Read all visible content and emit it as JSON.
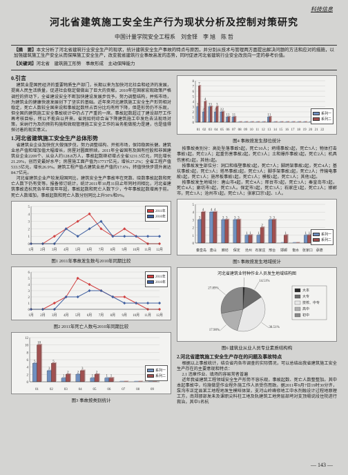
{
  "header_label": "科技信息",
  "title": "河北省建筑施工安全生产行为现状分析及控制对策研究",
  "authors": "中国计量学院安全工程系　刘金铎　李 旭　陈 哲",
  "abstract_label": "【摘　要】",
  "abstract": "本文分析了河北省建筑行业安全生产的现状，统计建筑安全生产事故的特点与原因，并分别从技术与管理两方面提出解决问题的方法和应对的措施，以加强建筑施工生产安全从而保障施工安全生产，改变我省建筑行业事故高发的态势，同时促进河北省建筑行业安全改良向一定的参考价值。",
  "keywords_label": "【关键词】",
  "keywords": "河北省　建筑施工形势　事故形成　主动保障能力",
  "sec0_head": "0.引言",
  "sec0_p1": "建筑业是国民经济的重要物质生产部门，长期以来为加快河北社会和经济的发展，提高人民生活质量，促进社会稳定做做出了巨大的贡献。2010年在国家宏观政策严格调控的挤动下，全省建设安全不断加快建设发展步伐予。努力调整结构，并拓市场，为建筑业的健康快速发展创下了坚实的基础。近年来河北建筑施工安全生产形势相对稳定，死亡人数较全国来说和事故起数所占百分比均有所下降，但是形势仍不乐观，但全国的建筑施工安全事故统计中仍占了严重的一席。事故起数超过了建设部厅工作再考核目标，所以不能自以开来。省则如何综合当下降建筑施工中发危去法现场对策，采纳行为及的预防构施和微观管理施工安全工作的当务能做能力是建，也是值得探讨着的现实意义。",
  "sec1_head": "1.河北省建筑施工安全生产总体形势",
  "sec1_p1": "省建筑业企业加快优大做强步伐，努力调整结构、开拓市场，保持稳固长健。建筑业总产值和增加值大幅增长，房屋对圆面积续。2011年全省国有及国有控股和非国建筑业企业2209个、从业人约128.8万人，事故起数继初增占全省3231.5亿元，同比增长21.29%，创历史最好水平；房屋施工面产值为17717亿元，增长27.2%；全省工程产值533.5亿元，增长26.9%。建筑工程产值占建筑业总产值的17.6%，转值快快步提升高达84.7亿元。",
  "sec1_p2": "河北省建筑企业产较发规国同比，建筑安全生产事故率在死数、晓数事故起数和死亡人数下仍有变等。报备修订统计，统计2011年10月31日止年同时间相比，河北省建筑事故造杭死各半年度年年超，事故起数和死亡人数下少，今年事故起数增高于前。死亡人数增加，事故起数和死亡人数分别同比上升50%和9%。",
  "chart1_caption": "图1 2011年事故发生数与2010年同期比较",
  "chart2_caption": "图2 2011年死亡人数与2010年同期比较",
  "chart3_caption": "图3 事故按类别统计",
  "chart4_caption": "图4 事故按发生部位统计",
  "chart5_caption": "图5 事故按发生地域统计",
  "chart6_caption": "图6 建筑业从业人员专业素质结构构",
  "chart5_title": "河北省建筑业特种作业人员发生地域结构图",
  "right_p1": "按事故类别分：高处坠落事故5起，死亡10人；坍塌事故3起，死亡5人；物体打击事故1起，死亡2人；起重伤害事故2起，死亡3人；土和爆炸事故1起，死亡2人；机具伤害机1起，其他1起。",
  "right_p2": "按事故发生部位分：洞口和临壁事故3起，死亡7人；脚跨架事故2起，死亡4人；基坑事故3起，死亡3人；塔吊事故2起，死亡3人；脚手架事故2起，死亡2人；传输电事故1起，死亡1人；施吊板事故1起，死亡1人；模板1起，死亡1人；其他1起。",
  "right_p3": "按事故发生地域分：唐山市4起，死亡4人；邢台市3起，死亡3人；秦皇岛市3起，死亡4人；廊坊市3起，死亡3人。保定市3起，死亡3人；石家庄1起，死亡2人；邯郸市，死亡1人；沧州市1起，死亡1人；张家口宗1起、1人。",
  "sec2_head": "2.河北省建筑施工安全生产存在的问题及事故特点",
  "right_p4": "根据以上事故统计，结合省内各市调查的实际情况，可以总结出我省建筑施工安全生产存在的主要意现和特点：",
  "right_p5": "2.1 违章作业、填场的容易常者普遍",
  "right_p6": "近年我省建筑工程领域安全生产形势不容乐观，事故起数、死亡人数整整加。其中本起事故中，均施做是作业程外施工作人员受伤而致。据2011年9月7日19时30分许，泵沟市正定县某工地程地发生模旺体架，支河山岭峰修地工中水剂融设计过程地原理工方，南郑那部发未及课职尖料柱工地及轨建筑工地旁层部垮对支顶塌说段住院进行救治，其中1名杭",
  "page_num": "— 143 —",
  "chart1": {
    "type": "line",
    "xlabels": [
      "1月",
      "2月",
      "3月",
      "4月",
      "5月",
      "6月",
      "7月",
      "8月",
      "9月",
      "10月",
      "11月",
      "12月"
    ],
    "ylim": [
      0,
      5
    ],
    "ytick": 1,
    "series": [
      {
        "label": "2011年",
        "color": "#d04040",
        "marker": "diamond",
        "values": [
          0,
          0,
          1,
          2,
          3,
          4,
          2,
          1,
          2,
          1,
          0,
          0
        ]
      },
      {
        "label": "2010年",
        "color": "#4060a0",
        "marker": "square",
        "values": [
          0,
          0,
          0,
          2,
          1,
          2,
          3,
          1,
          1,
          1,
          1,
          1
        ]
      }
    ],
    "bg": "#f3f3f1",
    "grid": "#bbb"
  },
  "chart2": {
    "type": "line",
    "xlabels": [
      "1月",
      "2月",
      "3月",
      "4月",
      "5月",
      "6月",
      "7月",
      "8月",
      "9月",
      "10月",
      "11月",
      "12月"
    ],
    "ylim": [
      0,
      6
    ],
    "ytick": 1,
    "series": [
      {
        "label": "2011年",
        "color": "#d04040",
        "marker": "diamond",
        "values": [
          0,
          0,
          1,
          2,
          5,
          4,
          3,
          2,
          2,
          1,
          0,
          0
        ]
      },
      {
        "label": "2010年",
        "color": "#4060a0",
        "marker": "square",
        "values": [
          0,
          0,
          0,
          2,
          2,
          3,
          3,
          2,
          1,
          1,
          1,
          1
        ]
      }
    ],
    "bg": "#f3f3f1",
    "grid": "#bbb"
  },
  "chart3": {
    "type": "bar",
    "categories": [
      "01",
      "02",
      "03",
      "04",
      "05",
      "06",
      "07",
      "08",
      "09"
    ],
    "series": [
      {
        "label": "系列一",
        "color": "#7090c0",
        "values": [
          5,
          3,
          1,
          2,
          1,
          1,
          0,
          0,
          0
        ]
      },
      {
        "label": "系列二",
        "color": "#a05050",
        "values": [
          10,
          5,
          2,
          3,
          2,
          1,
          0,
          0,
          0
        ]
      }
    ],
    "ylim": [
      0,
      12
    ],
    "ytick": 2,
    "bg": "#f3f3f1",
    "grid": "#bbb"
  },
  "chart4": {
    "type": "bar",
    "categories": [
      "01",
      "02",
      "03",
      "04",
      "05",
      "06",
      "07",
      "08",
      "09",
      "10",
      "11",
      "12",
      "13",
      "14",
      "15",
      "16",
      "17",
      "18",
      "19",
      "20",
      "21",
      "22"
    ],
    "series": [
      {
        "label": "系列一",
        "color": "#7090c0",
        "values": [
          3,
          2,
          3,
          2,
          2,
          1,
          1,
          0,
          0,
          0,
          0,
          0,
          1,
          0,
          0,
          0,
          0,
          0,
          0,
          0,
          0,
          0
        ]
      },
      {
        "label": "系列二",
        "color": "#a05050",
        "values": [
          7,
          4,
          3,
          3,
          2,
          1,
          1,
          0,
          0,
          0,
          0,
          0,
          1,
          0,
          0,
          0,
          0,
          0,
          0,
          0,
          0,
          0
        ]
      }
    ],
    "ylim": [
      0,
      8
    ],
    "ytick": 1,
    "bg": "#f3f3f1",
    "grid": "#bbb"
  },
  "chart5": {
    "type": "bar",
    "categories": [
      "秦皇岛",
      "唐山",
      "廊坊",
      "保定",
      "沧州",
      "石家庄",
      "邢台",
      "邯郸",
      "衡水",
      "张家口",
      "承德"
    ],
    "series": [
      {
        "label": "系列一",
        "color": "#7090c0",
        "values": [
          3,
          4,
          3,
          3,
          1,
          1,
          3,
          0,
          0,
          1,
          0
        ]
      },
      {
        "label": "系列二",
        "color": "#a05050",
        "values": [
          4,
          4,
          3,
          3,
          1,
          2,
          3,
          1,
          0,
          1,
          0
        ]
      }
    ],
    "ylim": [
      0,
      5
    ],
    "ytick": 1,
    "bg": "#f3f3f1",
    "grid": "#bbb"
  },
  "chart6": {
    "type": "pie",
    "slices": [
      {
        "label": "大本",
        "value": 1.1,
        "color": "#2a2a2a"
      },
      {
        "label": "大专",
        "value": 14.51,
        "color": "#6b6b6b"
      },
      {
        "label": "技校、中专",
        "value": 38.51,
        "color": "#e8e8e8"
      },
      {
        "label": "高中",
        "value": 17.9,
        "color": "#b0b0b0"
      },
      {
        "label": "初中",
        "value": 27.89,
        "color": "#888"
      }
    ],
    "legend": [
      "大本",
      "大专",
      "技校、中专",
      "高中",
      "初中"
    ],
    "label_pcts": [
      "1.10%",
      "14.51%",
      "38.51%",
      "17.90%",
      "27.89%"
    ],
    "bg": "#f3f3f1"
  }
}
